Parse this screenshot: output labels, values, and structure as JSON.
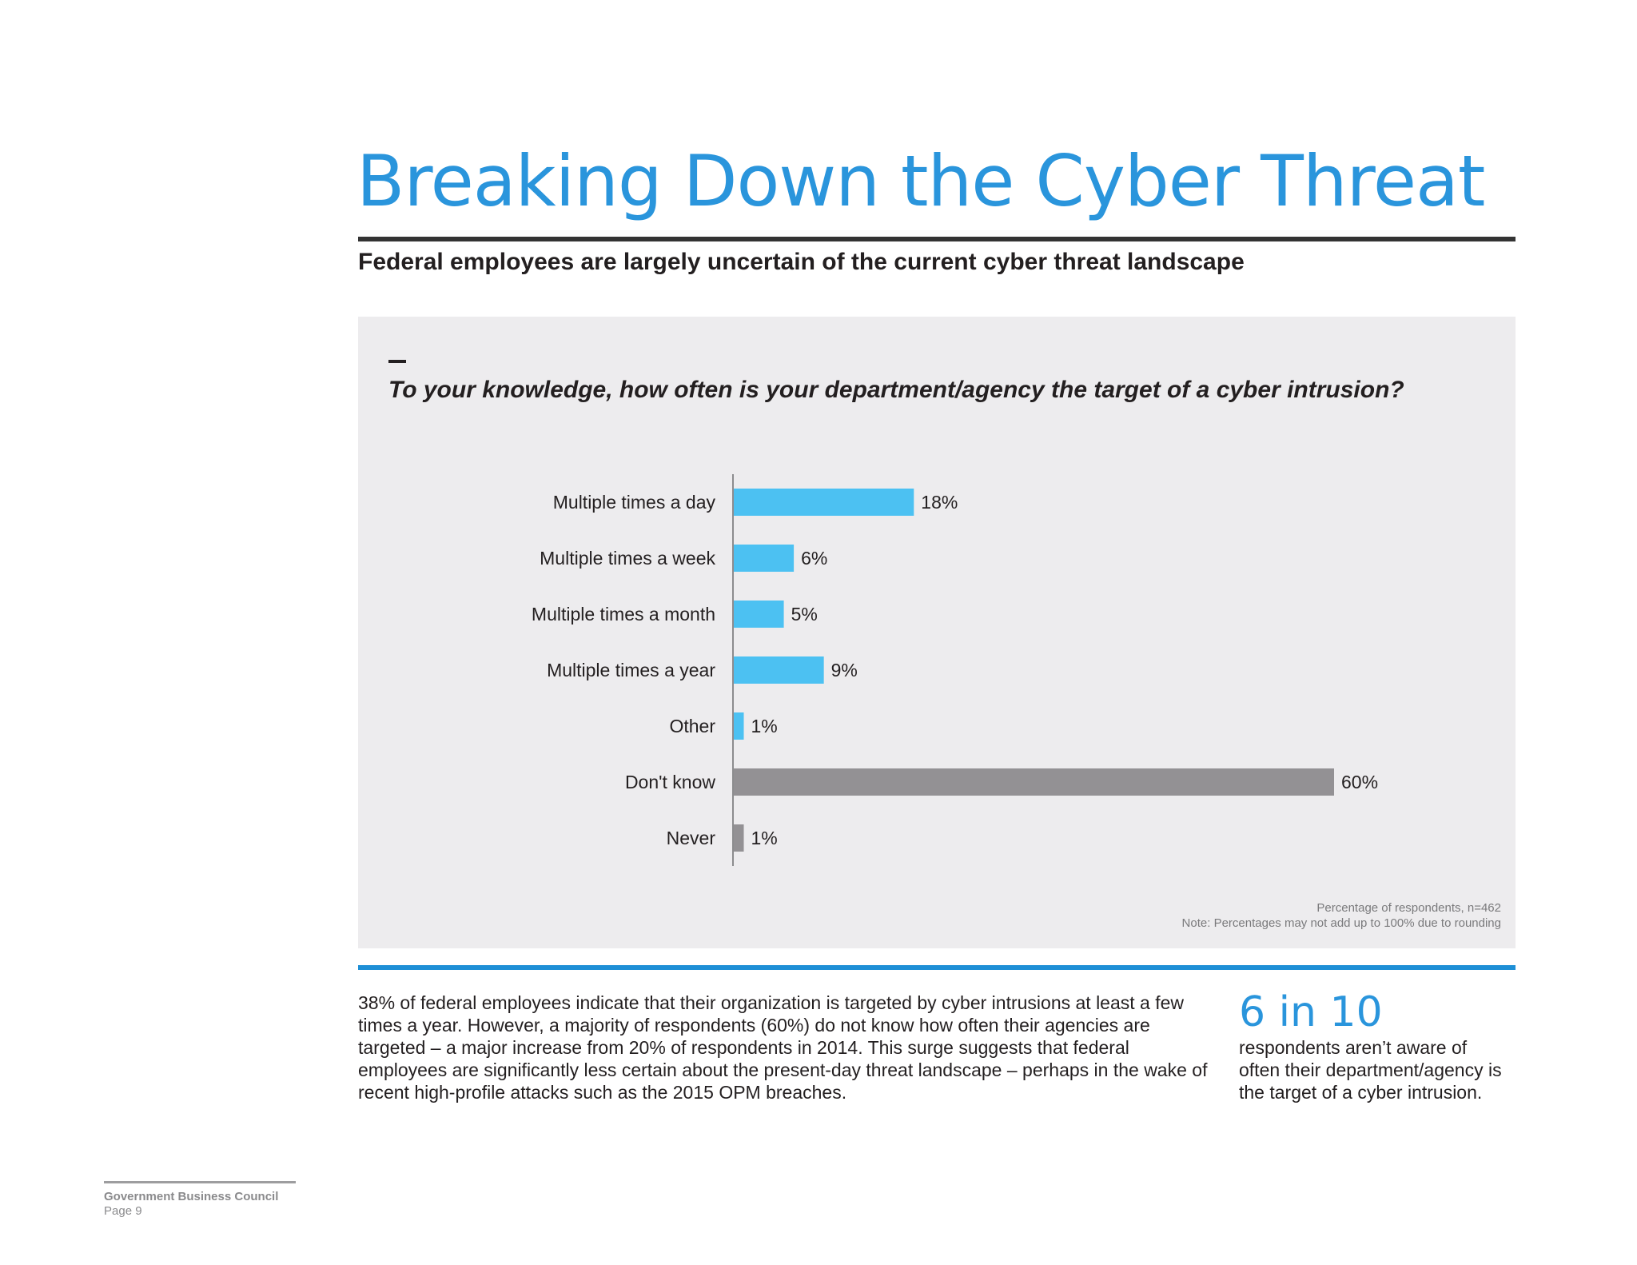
{
  "header": {
    "title": "Breaking Down the Cyber Threat",
    "subtitle": "Federal employees are largely uncertain of the current cyber threat landscape"
  },
  "panel": {
    "question": "To your knowledge, how often is your department/agency the target of a cyber intrusion?",
    "note_line1": "Percentage of respondents, n=462",
    "note_line2": "Note: Percentages may not add up to 100% due to rounding"
  },
  "chart_data": {
    "type": "bar",
    "orientation": "horizontal",
    "categories": [
      "Multiple times a day",
      "Multiple times a week",
      "Multiple times a month",
      "Multiple times a year",
      "Other",
      "Don't know",
      "Never"
    ],
    "values": [
      18,
      6,
      5,
      9,
      1,
      60,
      1
    ],
    "labels": [
      "18%",
      "6%",
      "5%",
      "9%",
      "1%",
      "60%",
      "1%"
    ],
    "colors": [
      "#4cc1f2",
      "#4cc1f2",
      "#4cc1f2",
      "#4cc1f2",
      "#4cc1f2",
      "#939194",
      "#939194"
    ],
    "title": "To your knowledge, how often is your department/agency the target of a cyber intrusion?",
    "xlabel": "",
    "ylabel": "",
    "xlim": [
      0,
      60
    ],
    "grid": false
  },
  "body": {
    "paragraph": "38% of federal employees indicate that their organization is targeted by cyber intrusions at least a few times a year. However, a majority of respondents (60%) do not know how often their agencies are targeted – a major increase from 20% of respondents in 2014. This surge suggests that federal employees are significantly less certain about the present-day threat landscape – perhaps in the wake of recent high-profile attacks such as the 2015 OPM breaches."
  },
  "callout": {
    "number": "6 in 10",
    "text": "respondents aren’t aware of often their department/agency is the target of a cyber intrusion."
  },
  "footer": {
    "organization": "Government Business Council",
    "page": "Page 9"
  },
  "colors": {
    "title_blue": "#2a95dc",
    "rule_blue": "#1e8fd6",
    "bar_blue": "#4cc1f2",
    "bar_gray": "#939194",
    "panel_bg": "#edecee"
  }
}
